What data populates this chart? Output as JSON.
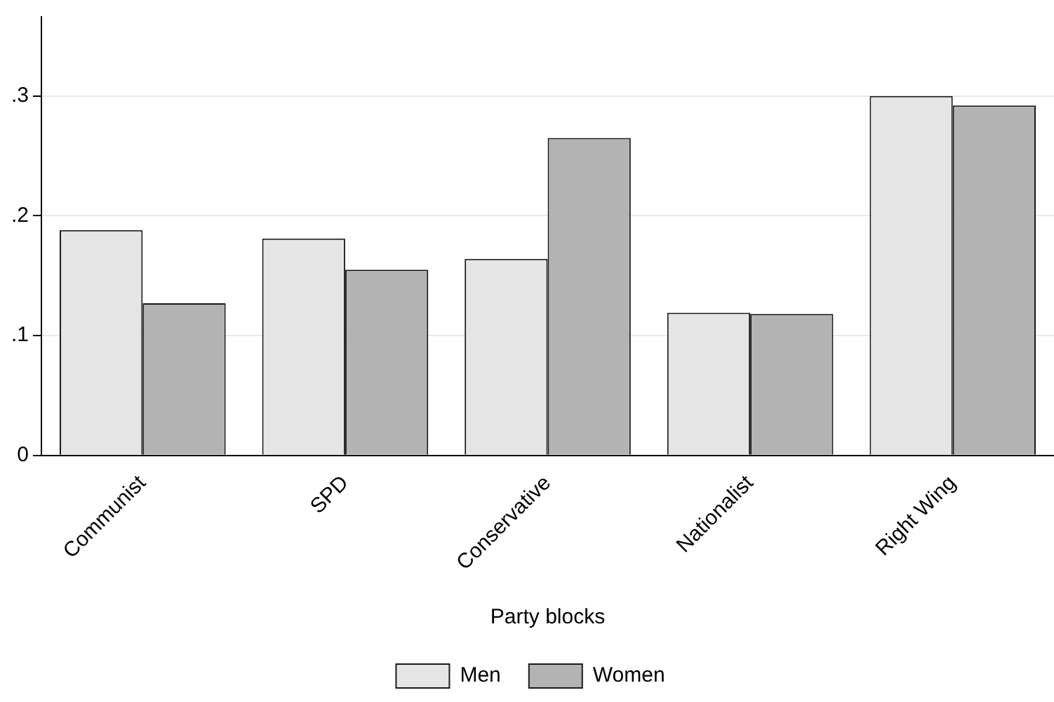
{
  "chart_data": {
    "type": "bar",
    "xlabel": "Party blocks",
    "categories": [
      "Communist",
      "SPD",
      "Conservative",
      "Nationalist",
      "Right Wing"
    ],
    "series": [
      {
        "name": "Men",
        "color": "#e5e5e5",
        "values": [
          0.188,
          0.181,
          0.164,
          0.119,
          0.3
        ]
      },
      {
        "name": "Women",
        "color": "#b3b3b3",
        "values": [
          0.127,
          0.155,
          0.265,
          0.118,
          0.292
        ]
      }
    ],
    "ylim": [
      0,
      0.366
    ],
    "yticks": [
      0,
      {
        "value": 0.1,
        "label": ".1"
      },
      {
        "value": 0.2,
        "label": ".2"
      },
      {
        "value": 0.3,
        "label": ".3"
      }
    ],
    "grid": "y",
    "legend": "bottom"
  }
}
